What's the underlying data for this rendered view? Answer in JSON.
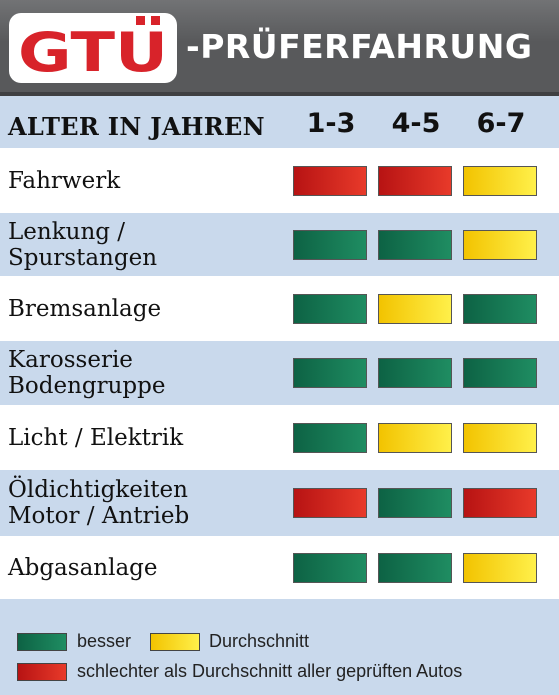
{
  "header": {
    "logo_text": "GTÜ",
    "title": "-PRÜFERFAHRUNG",
    "colors": {
      "background": "#58595b",
      "logo_red": "#d8232a",
      "logo_plate": "#ffffff"
    }
  },
  "table": {
    "header_label": "ALTER IN JAHREN"
  },
  "legend": {
    "items": [
      {
        "key": "gruen",
        "label": "besser",
        "color": "#1a7a52"
      },
      {
        "key": "gelb",
        "label": "Durchschnitt",
        "color": "#fbe12a"
      },
      {
        "key": "rot",
        "label": "schlechter als Durchschnitt aller geprüften Autos",
        "color": "#d42a22"
      }
    ]
  },
  "chart_data": {
    "type": "table",
    "columns": [
      "1-3",
      "4-5",
      "6-7"
    ],
    "rows": [
      {
        "label": [
          "Fahrwerk"
        ],
        "ratings": [
          "rot",
          "rot",
          "gelb"
        ]
      },
      {
        "label": [
          "Lenkung /",
          "Spurstangen"
        ],
        "ratings": [
          "gruen",
          "gruen",
          "gelb"
        ]
      },
      {
        "label": [
          "Bremsanlage"
        ],
        "ratings": [
          "gruen",
          "gelb",
          "gruen"
        ]
      },
      {
        "label": [
          "Karosserie",
          "Bodengruppe"
        ],
        "ratings": [
          "gruen",
          "gruen",
          "gruen"
        ]
      },
      {
        "label": [
          "Licht / Elektrik"
        ],
        "ratings": [
          "gruen",
          "gelb",
          "gelb"
        ]
      },
      {
        "label": [
          "Öldichtigkeiten",
          "Motor / Antrieb"
        ],
        "ratings": [
          "rot",
          "gruen",
          "rot"
        ]
      },
      {
        "label": [
          "Abgasanlage"
        ],
        "ratings": [
          "gruen",
          "gruen",
          "gelb"
        ]
      }
    ]
  }
}
